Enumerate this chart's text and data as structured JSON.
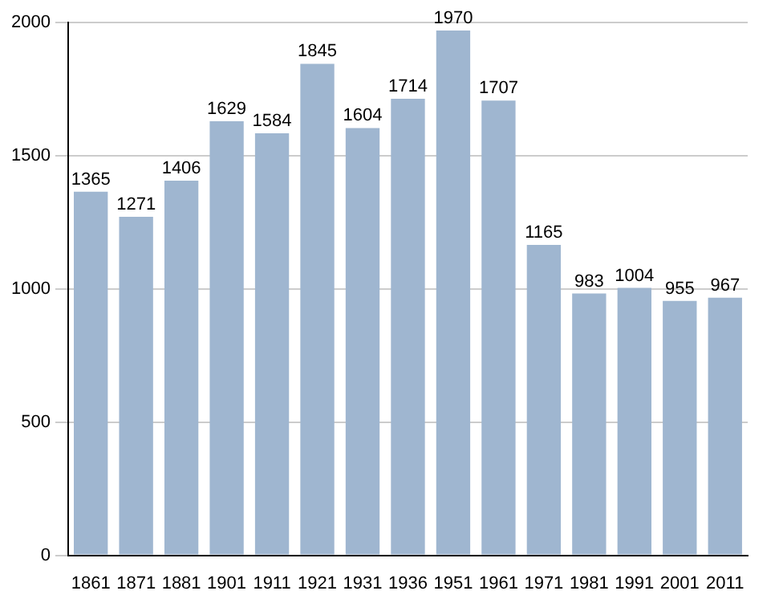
{
  "chart_data": {
    "type": "bar",
    "categories": [
      "1861",
      "1871",
      "1881",
      "1901",
      "1911",
      "1921",
      "1931",
      "1936",
      "1951",
      "1961",
      "1971",
      "1981",
      "1991",
      "2001",
      "2011"
    ],
    "values": [
      1365,
      1271,
      1406,
      1629,
      1584,
      1845,
      1604,
      1714,
      1970,
      1707,
      1165,
      983,
      1004,
      955,
      967
    ],
    "color": "#9fb6d0",
    "ylim": [
      0,
      2000
    ],
    "yticks": [
      0,
      500,
      1000,
      1500,
      2000
    ],
    "grid": "y",
    "data_labels": true
  }
}
